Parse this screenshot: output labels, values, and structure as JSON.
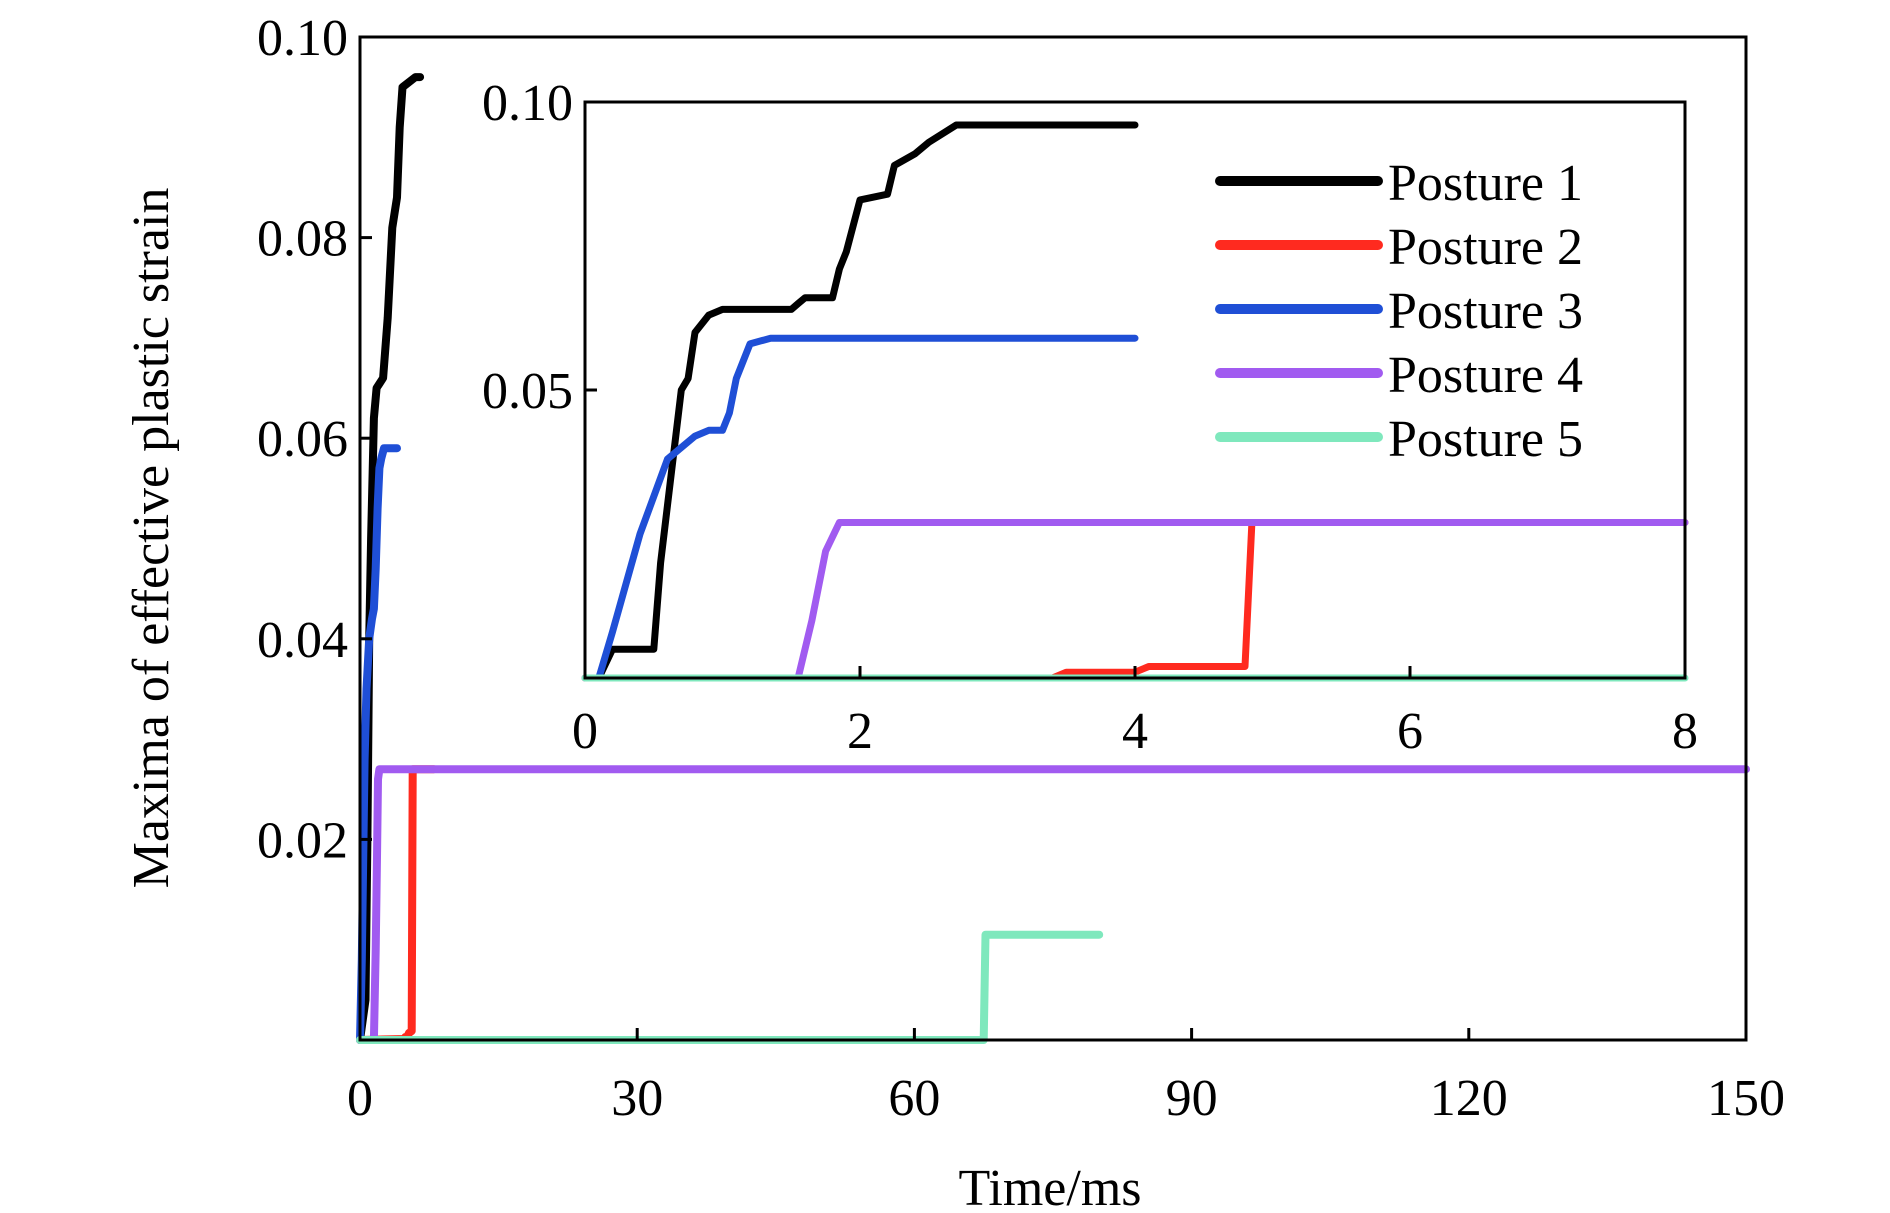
{
  "chart_data": [
    {
      "id": "main",
      "type": "line",
      "xlabel": "Time/ms",
      "ylabel": "Maxima of effective plastic strain",
      "xlim": [
        0,
        150
      ],
      "ylim": [
        0,
        0.1
      ],
      "x_ticks": [
        0,
        30,
        60,
        90,
        120,
        150
      ],
      "x_tick_labels": [
        "0",
        "30",
        "60",
        "90",
        "120",
        "150"
      ],
      "y_ticks": [
        0.02,
        0.04,
        0.06,
        0.08,
        0.1
      ],
      "y_tick_labels": [
        "0.02",
        "0.04",
        "0.06",
        "0.08",
        "0.10"
      ],
      "grid": false,
      "series": [
        {
          "name": "Posture 1",
          "color": "#000000",
          "points": [
            [
              0,
              0
            ],
            [
              0.6,
              0.004
            ],
            [
              0.8,
              0.02
            ],
            [
              1.0,
              0.04
            ],
            [
              1.2,
              0.05
            ],
            [
              1.5,
              0.062
            ],
            [
              1.8,
              0.065
            ],
            [
              2.5,
              0.066
            ],
            [
              3.0,
              0.072
            ],
            [
              3.5,
              0.081
            ],
            [
              4.0,
              0.084
            ],
            [
              4.3,
              0.091
            ],
            [
              4.6,
              0.095
            ],
            [
              6.0,
              0.096
            ],
            [
              6.5,
              0.096
            ]
          ]
        },
        {
          "name": "Posture 2",
          "color": "#ff2a1f",
          "points": [
            [
              0,
              0
            ],
            [
              4.8,
              0.0001
            ],
            [
              4.9,
              0.0003
            ],
            [
              5.0,
              0.0002
            ],
            [
              5.1,
              0.0003
            ],
            [
              5.3,
              0.0007
            ],
            [
              5.6,
              0.0009
            ],
            [
              5.7,
              0.027
            ],
            [
              6.5,
              0.027
            ],
            [
              8.0,
              0.027
            ]
          ]
        },
        {
          "name": "Posture 3",
          "color": "#1f4fd6",
          "points": [
            [
              0,
              0
            ],
            [
              0.2,
              0.008
            ],
            [
              0.5,
              0.028
            ],
            [
              0.7,
              0.035
            ],
            [
              1.0,
              0.04
            ],
            [
              1.3,
              0.042
            ],
            [
              1.5,
              0.043
            ],
            [
              1.7,
              0.047
            ],
            [
              1.9,
              0.053
            ],
            [
              2.1,
              0.057
            ],
            [
              2.3,
              0.058
            ],
            [
              2.6,
              0.059
            ],
            [
              3.2,
              0.059
            ],
            [
              4.0,
              0.059
            ]
          ]
        },
        {
          "name": "Posture 4",
          "color": "#a15bf0",
          "points": [
            [
              0,
              0
            ],
            [
              1.5,
              0
            ],
            [
              1.7,
              0.009
            ],
            [
              1.85,
              0.019
            ],
            [
              1.95,
              0.026
            ],
            [
              2.1,
              0.027
            ],
            [
              3.0,
              0.027
            ],
            [
              6.0,
              0.027
            ],
            [
              150,
              0.027
            ]
          ]
        },
        {
          "name": "Posture 5",
          "color": "#7fe8bd",
          "points": [
            [
              0,
              0
            ],
            [
              65,
              0
            ],
            [
              67.5,
              0
            ],
            [
              67.7,
              0.0105
            ],
            [
              70,
              0.0105
            ],
            [
              80,
              0.0105
            ]
          ]
        }
      ]
    },
    {
      "id": "inset",
      "type": "line",
      "xlim": [
        0,
        8
      ],
      "ylim": [
        0,
        0.1
      ],
      "x_ticks": [
        0,
        2,
        4,
        6,
        8
      ],
      "x_tick_labels": [
        "0",
        "2",
        "4",
        "6",
        "8"
      ],
      "y_ticks": [
        0.05,
        0.1
      ],
      "y_tick_labels": [
        "0.05",
        "0.10"
      ],
      "grid": false,
      "legend_position": "top-right",
      "series": [
        {
          "name": "Posture 1",
          "color": "#000000",
          "points": [
            [
              0.1,
              0
            ],
            [
              0.2,
              0.005
            ],
            [
              0.5,
              0.005
            ],
            [
              0.55,
              0.02
            ],
            [
              0.6,
              0.03
            ],
            [
              0.65,
              0.04
            ],
            [
              0.7,
              0.05
            ],
            [
              0.75,
              0.052
            ],
            [
              0.8,
              0.06
            ],
            [
              0.9,
              0.063
            ],
            [
              1.0,
              0.064
            ],
            [
              1.5,
              0.064
            ],
            [
              1.55,
              0.065
            ],
            [
              1.6,
              0.066
            ],
            [
              1.8,
              0.066
            ],
            [
              1.85,
              0.071
            ],
            [
              1.9,
              0.074
            ],
            [
              2.0,
              0.083
            ],
            [
              2.2,
              0.084
            ],
            [
              2.25,
              0.089
            ],
            [
              2.4,
              0.091
            ],
            [
              2.5,
              0.093
            ],
            [
              2.7,
              0.096
            ],
            [
              4.0,
              0.096
            ]
          ]
        },
        {
          "name": "Posture 2",
          "color": "#ff2a1f",
          "points": [
            [
              0,
              0
            ],
            [
              3.4,
              0
            ],
            [
              3.5,
              0.001
            ],
            [
              4.0,
              0.001
            ],
            [
              4.1,
              0.002
            ],
            [
              4.8,
              0.002
            ],
            [
              4.85,
              0.027
            ],
            [
              8.0,
              0.027
            ]
          ]
        },
        {
          "name": "Posture 3",
          "color": "#1f4fd6",
          "points": [
            [
              0.1,
              0
            ],
            [
              0.2,
              0.008
            ],
            [
              0.4,
              0.025
            ],
            [
              0.6,
              0.038
            ],
            [
              0.8,
              0.042
            ],
            [
              0.9,
              0.043
            ],
            [
              1.0,
              0.043
            ],
            [
              1.05,
              0.046
            ],
            [
              1.1,
              0.052
            ],
            [
              1.2,
              0.058
            ],
            [
              1.35,
              0.059
            ],
            [
              2.0,
              0.059
            ],
            [
              4.0,
              0.059
            ]
          ]
        },
        {
          "name": "Posture 4",
          "color": "#a15bf0",
          "points": [
            [
              0,
              0
            ],
            [
              1.55,
              0
            ],
            [
              1.65,
              0.01
            ],
            [
              1.75,
              0.022
            ],
            [
              1.85,
              0.027
            ],
            [
              2.0,
              0.027
            ],
            [
              8.0,
              0.027
            ]
          ]
        },
        {
          "name": "Posture 5",
          "color": "#7fe8bd",
          "points": [
            [
              0,
              0
            ],
            [
              8.0,
              0
            ]
          ]
        }
      ]
    }
  ]
}
